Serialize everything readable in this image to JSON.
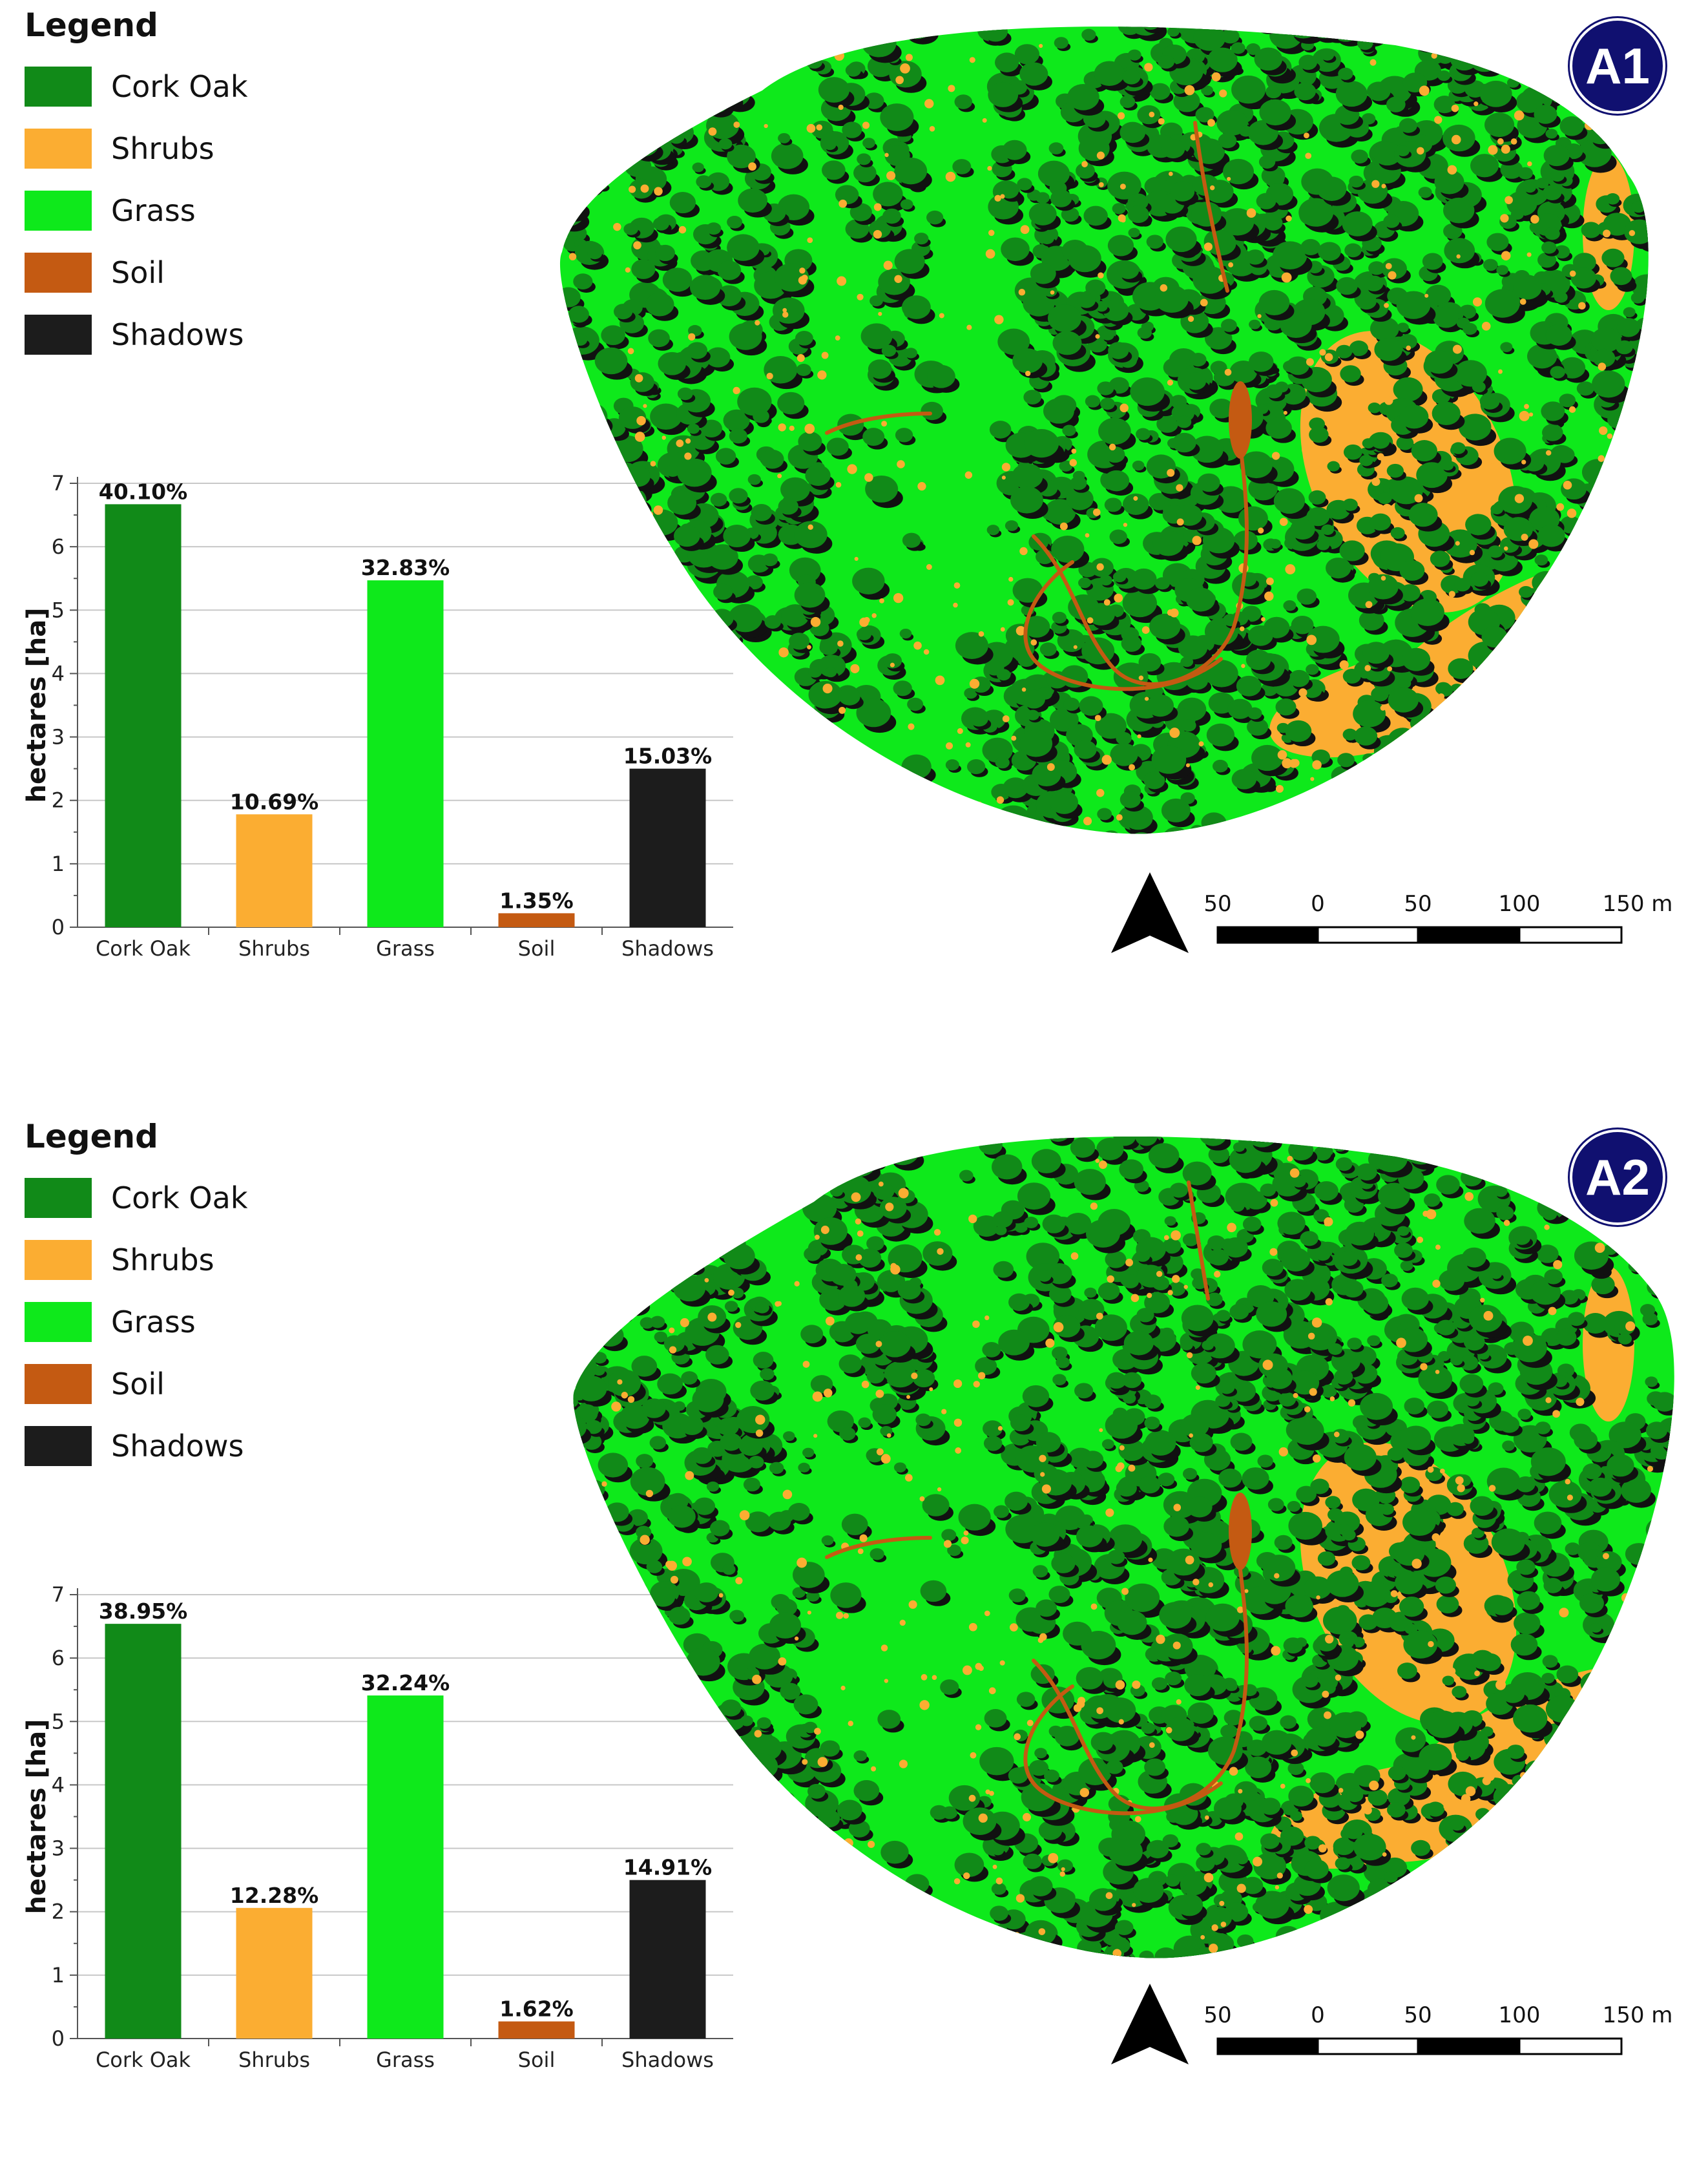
{
  "legend": {
    "title": "Legend",
    "items": [
      {
        "label": "Cork Oak",
        "color": "#118a18"
      },
      {
        "label": "Shrubs",
        "color": "#fbad32"
      },
      {
        "label": "Grass",
        "color": "#0ee91b"
      },
      {
        "label": "Soil",
        "color": "#c45a12"
      },
      {
        "label": "Shadows",
        "color": "#1c1c1c"
      }
    ]
  },
  "panels": [
    {
      "badge": "A1",
      "chart_data": {
        "type": "bar",
        "categories": [
          "Cork Oak",
          "Shrubs",
          "Grass",
          "Soil",
          "Shadows"
        ],
        "values": [
          6.67,
          1.78,
          5.47,
          0.22,
          2.5
        ],
        "labels": [
          "40.10%",
          "10.69%",
          "32.83%",
          "1.35%",
          "15.03%"
        ],
        "colors": [
          "#118a18",
          "#fbad32",
          "#0ee91b",
          "#c45a12",
          "#1c1c1c"
        ],
        "ylabel": "hectares [ha]",
        "ylim": [
          0,
          7
        ],
        "yticks": [
          "0",
          "1",
          "2",
          "3",
          "4",
          "5",
          "6",
          "7"
        ]
      }
    },
    {
      "badge": "A2",
      "chart_data": {
        "type": "bar",
        "categories": [
          "Cork Oak",
          "Shrubs",
          "Grass",
          "Soil",
          "Shadows"
        ],
        "values": [
          6.54,
          2.06,
          5.41,
          0.27,
          2.5
        ],
        "labels": [
          "38.95%",
          "12.28%",
          "32.24%",
          "1.62%",
          "14.91%"
        ],
        "colors": [
          "#118a18",
          "#fbad32",
          "#0ee91b",
          "#c45a12",
          "#1c1c1c"
        ],
        "ylabel": "hectares [ha]",
        "ylim": [
          0,
          7
        ],
        "yticks": [
          "0",
          "1",
          "2",
          "3",
          "4",
          "5",
          "6",
          "7"
        ]
      }
    }
  ],
  "scalebar": {
    "labels": [
      "50",
      "0",
      "50",
      "100",
      "150 m"
    ]
  },
  "map_classes": {
    "cork_oak": "#118a18",
    "grass": "#0ee91b",
    "shrubs": "#fbad32",
    "soil": "#c45a12",
    "shadows": "#111111"
  }
}
